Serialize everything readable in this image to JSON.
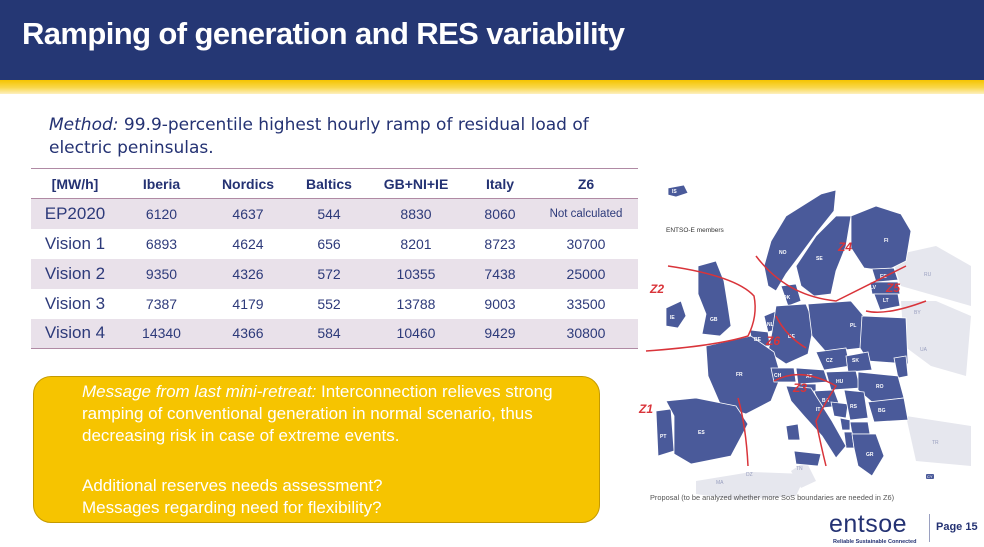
{
  "title": "Ramping of generation and RES variability",
  "method": {
    "label": "Method:",
    "text": " 99.9-percentile highest hourly ramp of residual load of electric peninsulas."
  },
  "table": {
    "headers": [
      "[MW/h]",
      "Iberia",
      "Nordics",
      "Baltics",
      "GB+NI+IE",
      "Italy",
      "Z6"
    ],
    "rows": [
      [
        "EP2020",
        "6120",
        "4637",
        "544",
        "8830",
        "8060",
        "Not calculated"
      ],
      [
        "Vision 1",
        "6893",
        "4624",
        "656",
        "8201",
        "8723",
        "30700"
      ],
      [
        "Vision 2",
        "9350",
        "4326",
        "572",
        "10355",
        "7438",
        "25000"
      ],
      [
        "Vision 3",
        "7387",
        "4179",
        "552",
        "13788",
        "9003",
        "33500"
      ],
      [
        "Vision 4",
        "14340",
        "4366",
        "584",
        "10460",
        "9429",
        "30800"
      ]
    ]
  },
  "message": {
    "label": "Message from last mini-retreat:",
    "text": " Interconnection relieves strong ramping of conventional generation in normal scenario, thus decreasing risk in case of extreme events.",
    "line2": "Additional reserves needs assessment?",
    "line3": "Messages regarding need for flexibility?"
  },
  "map": {
    "legend": "ENTSO-E members",
    "zones": [
      "Z1",
      "Z2",
      "Z3",
      "Z4",
      "Z5",
      "Z6"
    ],
    "countries": [
      "IS",
      "NO",
      "SE",
      "FI",
      "EE",
      "LV",
      "LT",
      "RU",
      "BY",
      "DK",
      "IE",
      "GB",
      "NL",
      "BE",
      "LU",
      "DE",
      "PL",
      "UA",
      "CZ",
      "SK",
      "MD",
      "FR",
      "CH",
      "AT",
      "HU",
      "RO",
      "SI",
      "HR",
      "BA",
      "RS",
      "BG",
      "ME",
      "MK",
      "AL",
      "GR",
      "IT",
      "PT",
      "ES",
      "TR",
      "CY",
      "MA",
      "DZ",
      "TN"
    ],
    "caption": "Proposal (to be analyzed whether more SoS boundaries are needed in Z6)"
  },
  "logo": {
    "word": "entsoe",
    "tagline": "Reliable Sustainable Connected"
  },
  "page": "Page 15",
  "colors": {
    "header": "#253774",
    "accent": "#f6c400",
    "map_member": "#4a5a9a",
    "zone_line": "#d9343a",
    "row_shade": "#e9e1ea"
  }
}
